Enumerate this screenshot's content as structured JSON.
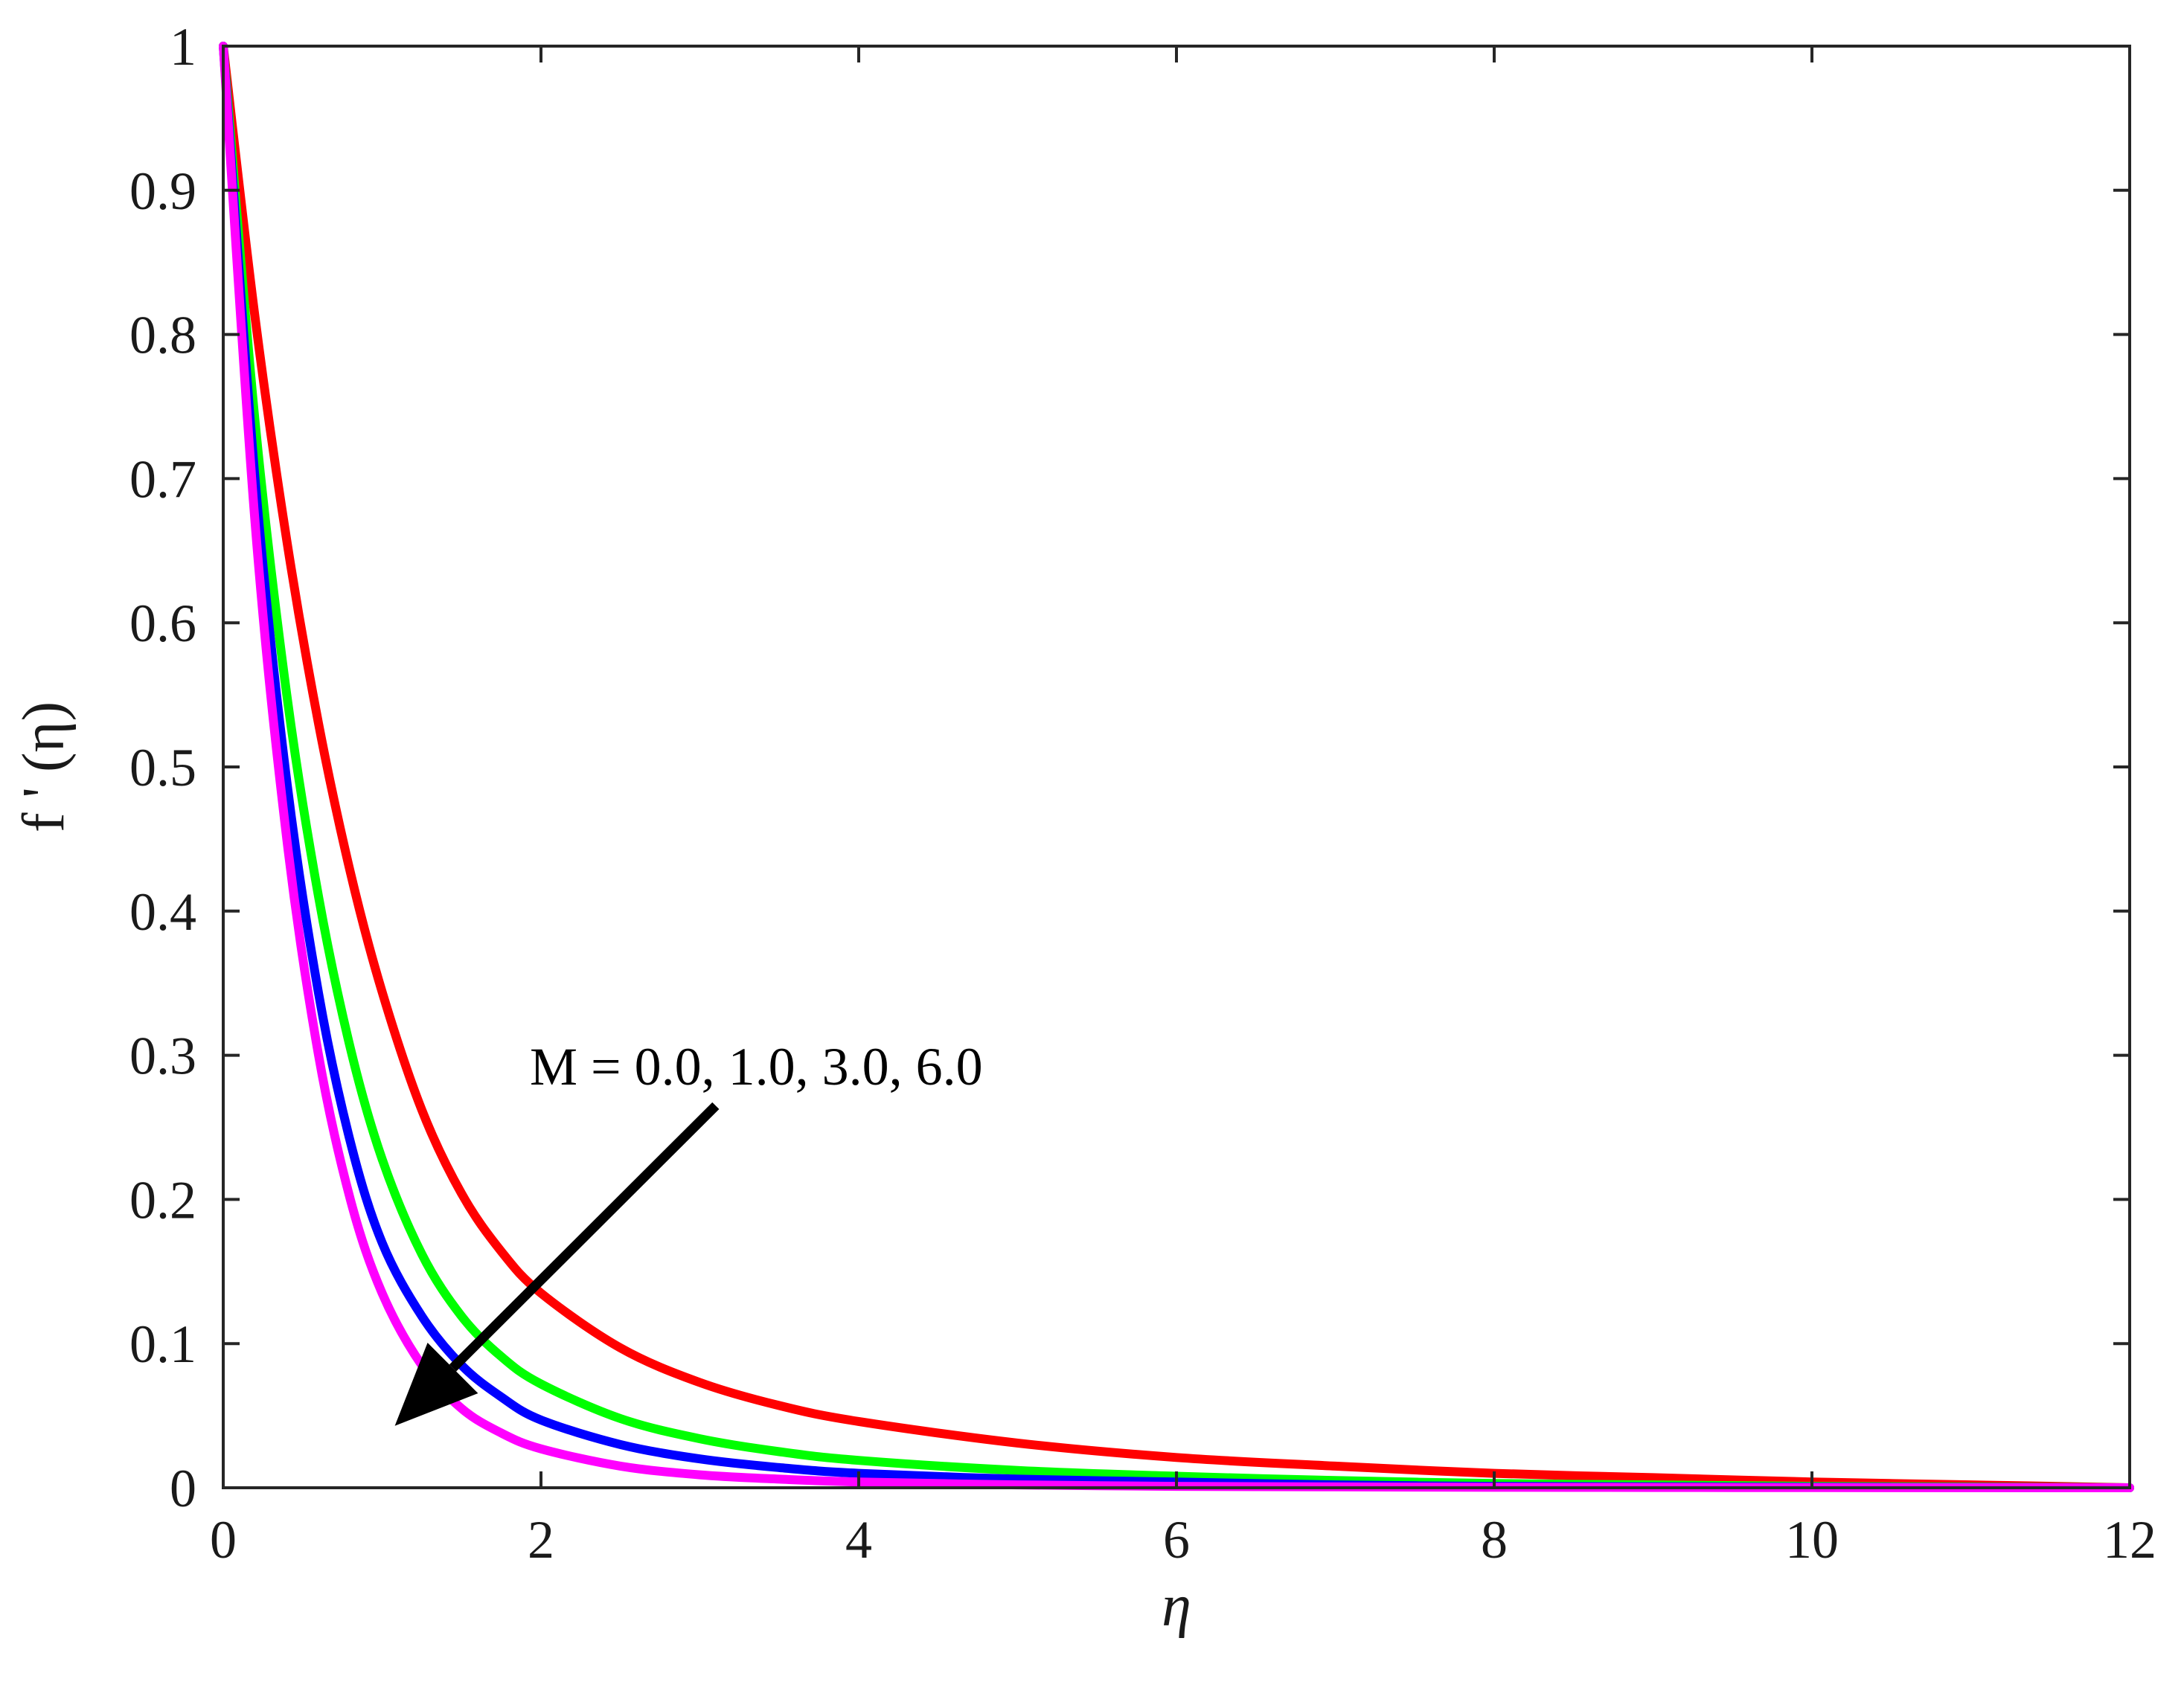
{
  "chart_data": {
    "type": "line",
    "title": "",
    "xlabel": "η",
    "ylabel": "f ' (η)",
    "xlim": [
      0,
      12
    ],
    "ylim": [
      0,
      1
    ],
    "x_ticks": [
      0,
      2,
      4,
      6,
      8,
      10,
      12
    ],
    "y_ticks": [
      0,
      0.1,
      0.2,
      0.3,
      0.4,
      0.5,
      0.6,
      0.7,
      0.8,
      0.9,
      1
    ],
    "x_tick_labels": [
      "0",
      "2",
      "4",
      "6",
      "8",
      "10",
      "12"
    ],
    "y_tick_labels": [
      "0",
      "0.1",
      "0.2",
      "0.3",
      "0.4",
      "0.5",
      "0.6",
      "0.7",
      "0.8",
      "0.9",
      "1"
    ],
    "grid": false,
    "legend": "none",
    "x": [
      0,
      0.2,
      0.4,
      0.6,
      0.8,
      1.0,
      1.25,
      1.5,
      1.75,
      2.0,
      2.5,
      3.0,
      3.5,
      4.0,
      5.0,
      6.0,
      7.0,
      8.0,
      9.0,
      10.0,
      11.0,
      12.0
    ],
    "series": [
      {
        "color": "#ff0000",
        "values": [
          1.0,
          0.812,
          0.657,
          0.53,
          0.427,
          0.344,
          0.262,
          0.204,
          0.164,
          0.135,
          0.097,
          0.073,
          0.057,
          0.046,
          0.031,
          0.021,
          0.015,
          0.01,
          0.007,
          0.004,
          0.002,
          0.0
        ]
      },
      {
        "color": "#00ff00",
        "values": [
          1.0,
          0.74,
          0.55,
          0.41,
          0.305,
          0.228,
          0.162,
          0.119,
          0.091,
          0.072,
          0.048,
          0.034,
          0.025,
          0.019,
          0.012,
          0.008,
          0.005,
          0.003,
          0.002,
          0.001,
          0.0005,
          0.0
        ]
      },
      {
        "color": "#0000ff",
        "values": [
          1.0,
          0.7,
          0.49,
          0.343,
          0.24,
          0.17,
          0.119,
          0.085,
          0.063,
          0.047,
          0.03,
          0.02,
          0.014,
          0.01,
          0.006,
          0.004,
          0.002,
          0.001,
          0.0007,
          0.0004,
          0.0002,
          0.0
        ]
      },
      {
        "color": "#ff00ff",
        "values": [
          1.0,
          0.67,
          0.45,
          0.3,
          0.2,
          0.135,
          0.085,
          0.055,
          0.038,
          0.027,
          0.015,
          0.009,
          0.006,
          0.004,
          0.002,
          0.001,
          0.0006,
          0.0003,
          0.0002,
          0.0001,
          5e-05,
          0.0
        ]
      }
    ],
    "annotations": [
      {
        "text": "M = 0.0, 1.0, 3.0, 6.0",
        "arrow_from": [
          3.1,
          0.265
        ],
        "arrow_to": [
          1.08,
          0.043
        ]
      }
    ]
  }
}
